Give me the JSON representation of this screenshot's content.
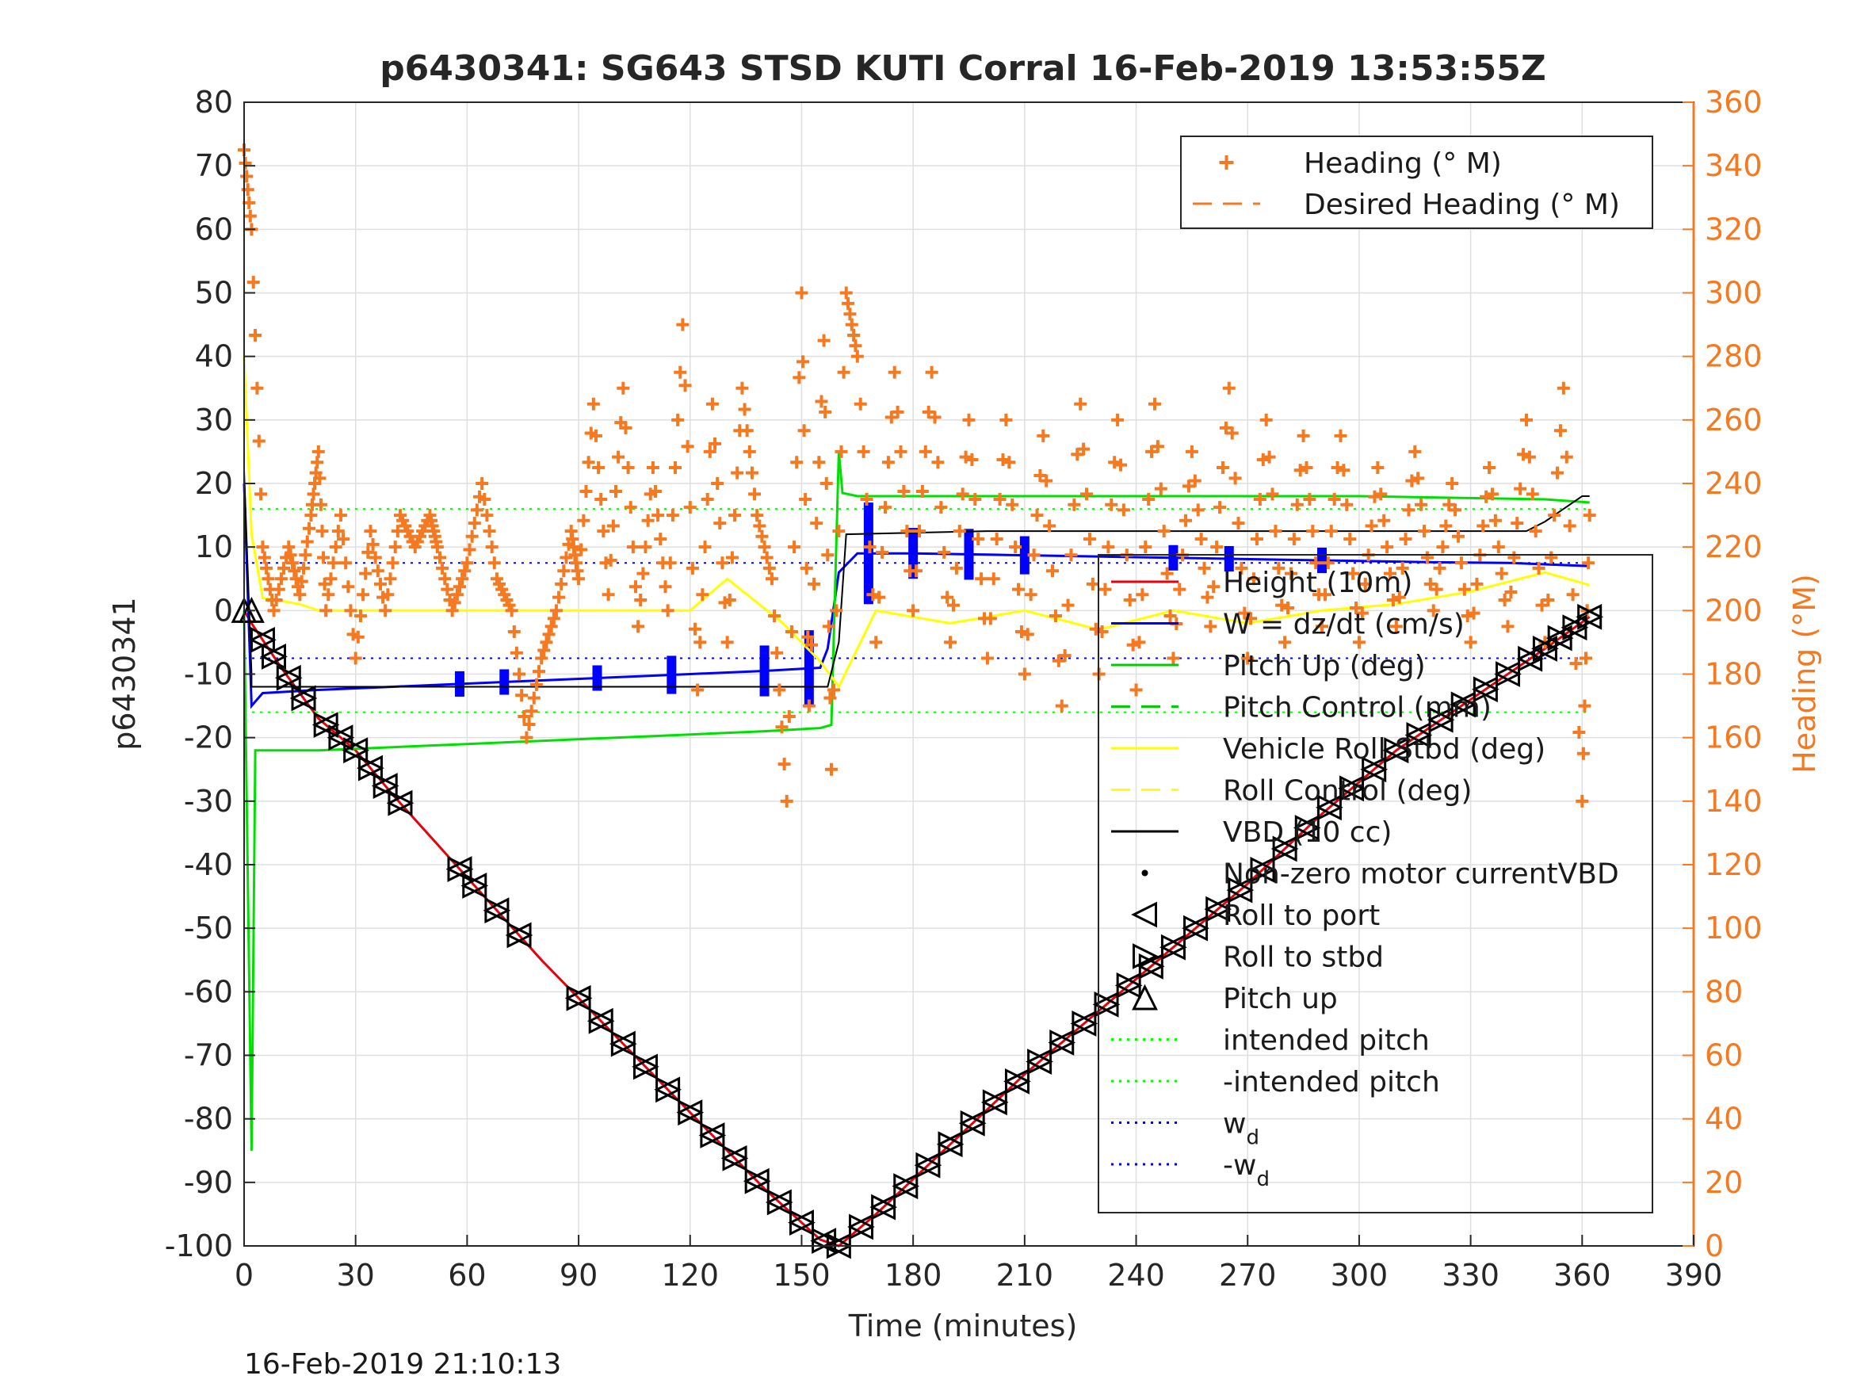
{
  "chart_data": {
    "type": "line",
    "title": "p6430341: SG643 STSD KUTI Corral 16-Feb-2019 13:53:55Z",
    "xlabel": "Time (minutes)",
    "ylabel": "p6430341",
    "ylabel_right": "Heading (°M)",
    "xlim": [
      0,
      390
    ],
    "ylim": [
      -100,
      80
    ],
    "ylim_right": [
      0,
      360
    ],
    "x_ticks": [
      "0",
      "30",
      "60",
      "90",
      "120",
      "150",
      "180",
      "210",
      "240",
      "270",
      "300",
      "330",
      "360",
      "390"
    ],
    "y_ticks": [
      "80",
      "70",
      "60",
      "50",
      "40",
      "30",
      "20",
      "10",
      "0",
      "-10",
      "-20",
      "-30",
      "-40",
      "-50",
      "-60",
      "-70",
      "-80",
      "-90",
      "-100"
    ],
    "y_right_ticks": [
      "360",
      "340",
      "320",
      "300",
      "280",
      "260",
      "240",
      "220",
      "200",
      "180",
      "160",
      "140",
      "120",
      "100",
      "80",
      "60",
      "40",
      "20",
      "0"
    ],
    "grid": true,
    "footer": "16-Feb-2019 21:10:13",
    "legend_heading": [
      {
        "label": "Heading (° M)",
        "style": "plus",
        "color": "#f47920"
      },
      {
        "label": "Desired Heading (° M)",
        "style": "dashed",
        "color": "#f47920"
      }
    ],
    "legend_main": [
      {
        "label": "Height (10m)",
        "style": "solid",
        "color": "#e8000b"
      },
      {
        "label": "W = dz/dt (cm/s)",
        "style": "solid",
        "color": "#0000ff"
      },
      {
        "label": "Pitch Up (deg)",
        "style": "solid",
        "color": "#00cc00"
      },
      {
        "label": "Pitch Control (mm)",
        "style": "dashed",
        "color": "#00cc00"
      },
      {
        "label": "Vehicle Roll Stbd (deg)",
        "style": "solid",
        "color": "#ffff00"
      },
      {
        "label": "Roll Control (deg)",
        "style": "dashed",
        "color": "#ffff00"
      },
      {
        "label": "VBD (10 cc)",
        "style": "solid",
        "color": "#000000"
      },
      {
        "label": "Non-zero motor currentVBD",
        "style": "dot",
        "color": "#000000"
      },
      {
        "label": "Roll to port",
        "style": "tri-left",
        "color": "#000000"
      },
      {
        "label": "Roll to stbd",
        "style": "tri-right",
        "color": "#000000"
      },
      {
        "label": "Pitch up",
        "style": "tri-up",
        "color": "#000000"
      },
      {
        "label": "intended pitch",
        "style": "dotted",
        "color": "#00ff00"
      },
      {
        "label": "-intended pitch",
        "style": "dotted",
        "color": "#00ff00"
      },
      {
        "label": "w",
        "sub": "d",
        "style": "dotted",
        "color": "#0000ff"
      },
      {
        "label": "-w",
        "sub": "d",
        "style": "dotted",
        "color": "#0000ff"
      }
    ],
    "series": [
      {
        "name": "Height (10m)",
        "color": "#e8000b",
        "x": [
          0,
          2,
          10,
          20,
          30,
          40,
          60,
          80,
          100,
          120,
          140,
          155,
          160,
          170,
          190,
          210,
          230,
          250,
          270,
          290,
          310,
          330,
          350,
          362
        ],
        "y": [
          0,
          -2,
          -9,
          -17,
          -22,
          -29,
          -42,
          -55,
          -67,
          -79,
          -91,
          -99,
          -100,
          -95,
          -84,
          -73,
          -63,
          -53,
          -43,
          -32,
          -22,
          -14,
          -6,
          -1
        ]
      },
      {
        "name": "W = dz/dt (cm/s)",
        "color": "#0000ff",
        "x": [
          0,
          2,
          5,
          20,
          40,
          60,
          80,
          100,
          120,
          140,
          155,
          157,
          160,
          165,
          180,
          200,
          220,
          240,
          260,
          280,
          300,
          320,
          340,
          362
        ],
        "y": [
          20,
          -15,
          -13,
          -12.5,
          -12,
          -11.5,
          -11,
          -10.5,
          -10,
          -9.5,
          -9,
          -6,
          6,
          9,
          9,
          8.8,
          8.6,
          8.4,
          8.2,
          8,
          7.8,
          7.6,
          7.5,
          7
        ],
        "burst_x": [
          58,
          70,
          95,
          115,
          140,
          152,
          168,
          180,
          195,
          210,
          250,
          265,
          290
        ],
        "burst_amp": [
          2,
          2,
          2,
          3,
          4,
          6,
          8,
          4,
          4,
          3,
          2,
          2,
          2
        ]
      },
      {
        "name": "Pitch Up (deg)",
        "color": "#00e000",
        "x": [
          0,
          2,
          3,
          20,
          40,
          60,
          80,
          100,
          120,
          140,
          155,
          158,
          160,
          161,
          165,
          200,
          250,
          300,
          350,
          362
        ],
        "y": [
          0,
          -85,
          -22,
          -22,
          -21.5,
          -21,
          -20.5,
          -20,
          -19.5,
          -19,
          -18.5,
          -18,
          25,
          18.5,
          18,
          18,
          18,
          18,
          17.5,
          17
        ]
      },
      {
        "name": "Vehicle Roll Stbd (deg)",
        "color": "#ffff00",
        "x": [
          0,
          2,
          5,
          15,
          20,
          40,
          60,
          80,
          100,
          120,
          130,
          145,
          155,
          160,
          170,
          190,
          210,
          230,
          250,
          270,
          290,
          310,
          330,
          350,
          362
        ],
        "y": [
          40,
          12,
          2,
          1,
          0,
          0,
          0,
          0,
          0,
          0,
          5,
          -2,
          -8,
          -12,
          0,
          -2,
          0,
          -3,
          0,
          -2,
          0,
          1,
          3,
          6,
          4
        ]
      },
      {
        "name": "VBD (10 cc)",
        "color": "#000000",
        "x": [
          0,
          2,
          2,
          60,
          100,
          150,
          157,
          160,
          162,
          200,
          250,
          300,
          345,
          350,
          355,
          360,
          362
        ],
        "y": [
          22,
          -10,
          -12,
          -12,
          -12,
          -12,
          -12,
          -5,
          12,
          12.5,
          12.5,
          12.5,
          12.5,
          14,
          16,
          18,
          18
        ]
      }
    ],
    "heading": {
      "color": "#f47920",
      "x": [
        0,
        2,
        5,
        8,
        12,
        15,
        18,
        20,
        22,
        26,
        30,
        34,
        38,
        42,
        46,
        50,
        52,
        56,
        60,
        64,
        68,
        72,
        76,
        80,
        84,
        88,
        90,
        94,
        98,
        102,
        106,
        110,
        114,
        118,
        122,
        126,
        130,
        134,
        138,
        142,
        146,
        150,
        152,
        156,
        158,
        162,
        165,
        170,
        175,
        180,
        185,
        190,
        195,
        200,
        205,
        210,
        215,
        220,
        225,
        230,
        235,
        240,
        245,
        250,
        255,
        260,
        265,
        270,
        275,
        280,
        285,
        290,
        295,
        300,
        305,
        310,
        315,
        320,
        325,
        330,
        335,
        340,
        345,
        350,
        355,
        360,
        362
      ],
      "y": [
        345,
        320,
        220,
        200,
        220,
        205,
        230,
        250,
        200,
        230,
        185,
        225,
        200,
        230,
        220,
        230,
        220,
        200,
        215,
        240,
        210,
        200,
        160,
        185,
        200,
        225,
        210,
        265,
        205,
        270,
        195,
        245,
        200,
        290,
        175,
        265,
        190,
        270,
        230,
        210,
        140,
        300,
        170,
        285,
        150,
        300,
        280,
        190,
        275,
        200,
        275,
        190,
        260,
        185,
        260,
        180,
        255,
        170,
        265,
        180,
        260,
        175,
        265,
        185,
        250,
        195,
        270,
        185,
        260,
        190,
        255,
        195,
        255,
        190,
        245,
        195,
        250,
        200,
        240,
        190,
        245,
        195,
        260,
        190,
        270,
        140,
        230
      ]
    },
    "markers": {
      "pitch_up": [
        [
          0,
          0
        ],
        [
          2,
          0
        ]
      ],
      "roll_port_x": [
        5,
        8,
        12,
        16,
        22,
        26,
        30,
        34,
        38,
        42,
        58,
        62,
        68,
        74,
        90,
        96,
        102,
        108,
        114,
        120,
        126,
        132,
        138,
        144,
        150,
        156,
        160,
        166,
        172,
        178,
        184,
        190,
        196,
        202,
        208,
        214,
        220,
        226,
        232,
        238,
        244,
        250,
        256,
        262,
        268,
        274,
        280,
        286,
        292,
        298,
        304,
        310,
        316,
        322,
        328,
        334,
        340,
        346,
        350,
        354,
        358,
        362
      ]
    },
    "intended_pitch": 16,
    "w_d": 7.5
  }
}
